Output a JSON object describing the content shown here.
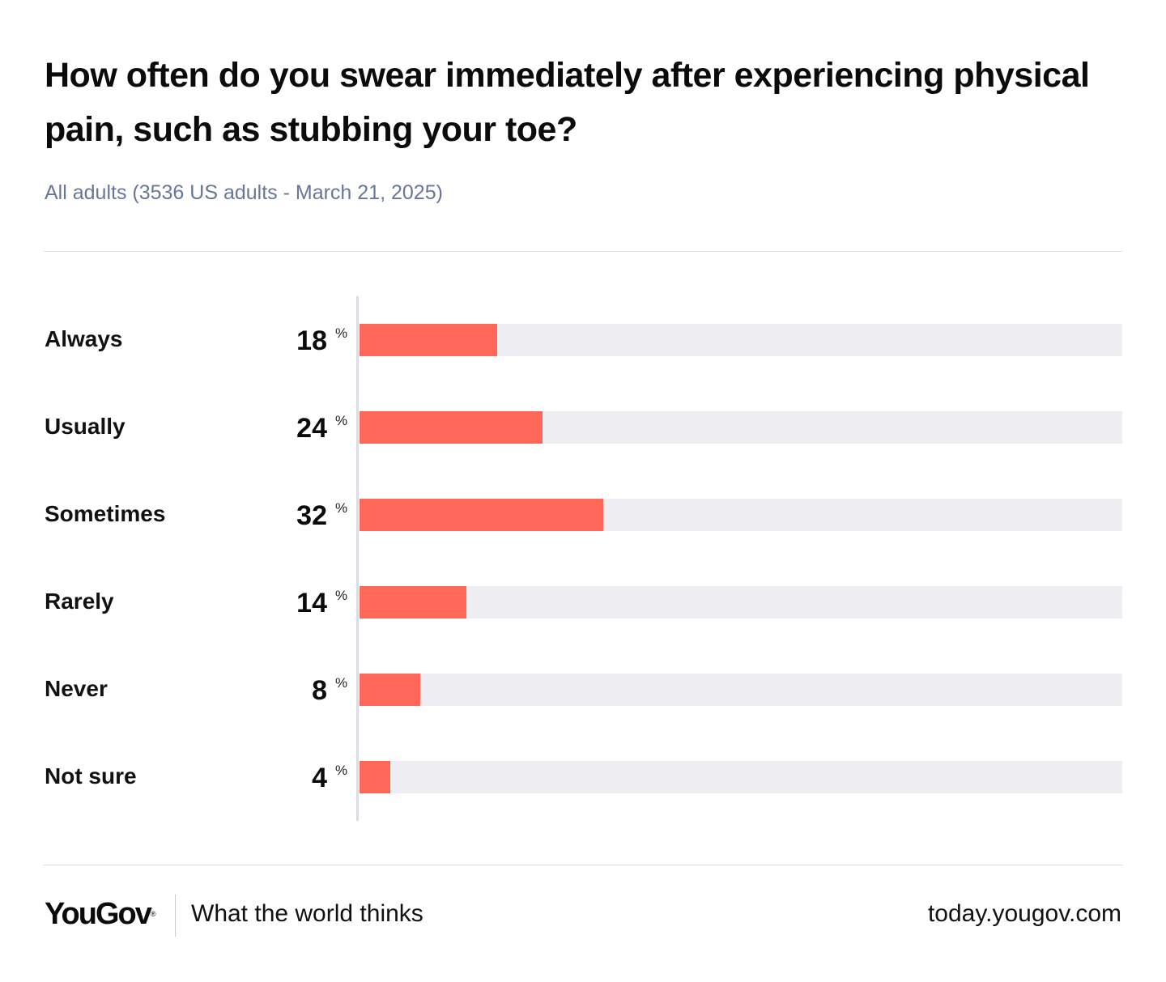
{
  "title": "How often do you swear immediately after experiencing physical pain, such as stubbing your toe?",
  "subtitle": "All adults (3536 US adults - March 21, 2025)",
  "colors": {
    "bar": "#ff6859",
    "track": "#eeeef2",
    "subtitle": "#67779a"
  },
  "chart_data": {
    "type": "bar",
    "orientation": "horizontal",
    "title": "How often do you swear immediately after experiencing physical pain, such as stubbing your toe?",
    "subtitle": "All adults (3536 US adults - March 21, 2025)",
    "categories": [
      "Always",
      "Usually",
      "Sometimes",
      "Rarely",
      "Never",
      "Not sure"
    ],
    "values": [
      18,
      24,
      32,
      14,
      8,
      4
    ],
    "value_labels": [
      "18",
      "24",
      "32",
      "14",
      "8",
      "4"
    ],
    "unit": "%",
    "xlim": [
      0,
      100
    ],
    "xlabel": "",
    "ylabel": "",
    "grid": false,
    "legend": "none"
  },
  "footer": {
    "logo": "YouGov",
    "logo_mark": "®",
    "tagline": "What the world thinks",
    "url": "today.yougov.com"
  }
}
